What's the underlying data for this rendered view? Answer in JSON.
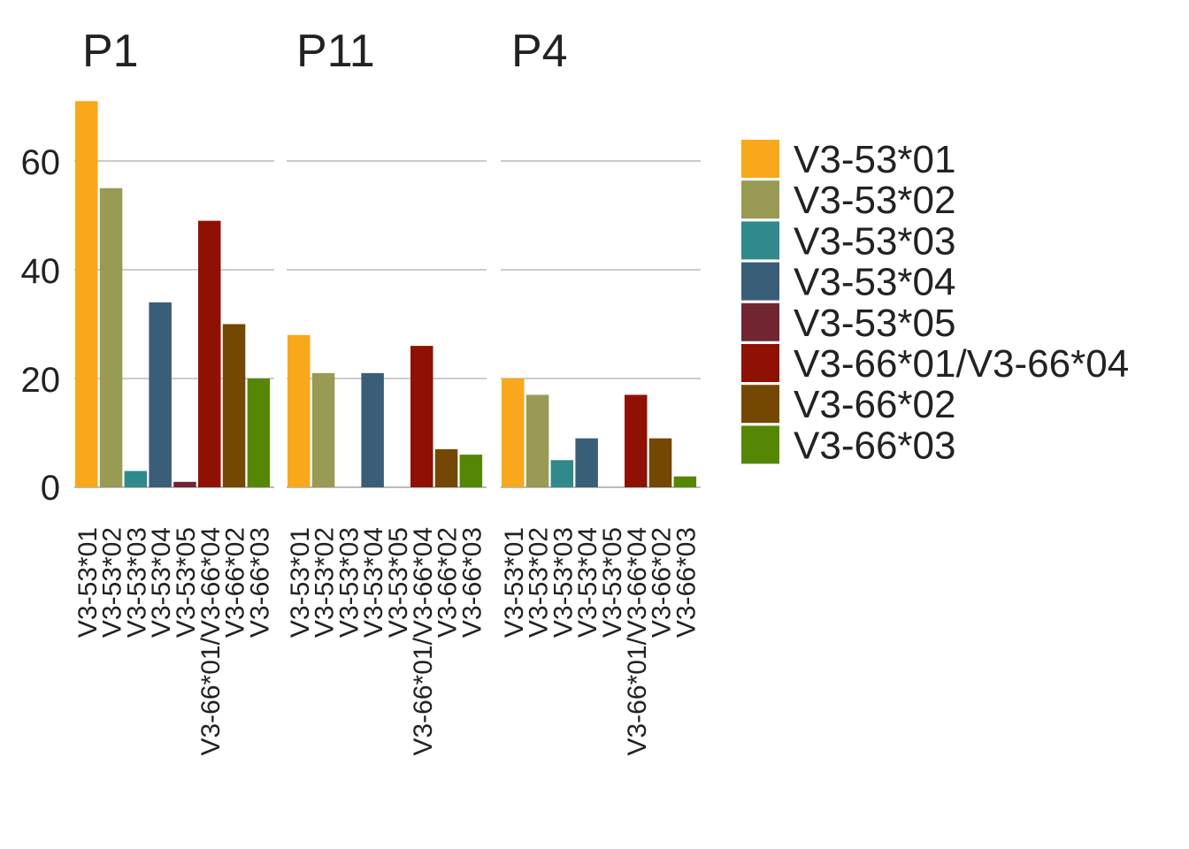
{
  "chart_data": {
    "type": "bar",
    "title": "",
    "xlabel": "",
    "ylabel": "",
    "ylim": [
      0,
      71
    ],
    "yticks": [
      0,
      20,
      40,
      60
    ],
    "grid": true,
    "legend_position": "right",
    "categories": [
      "V3-53*01",
      "V3-53*02",
      "V3-53*03",
      "V3-53*04",
      "V3-53*05",
      "V3-66*01/V3-66*04",
      "V3-66*02",
      "V3-66*03"
    ],
    "colors": [
      "#f9a81b",
      "#999a54",
      "#308a8b",
      "#3a5d78",
      "#712531",
      "#8f1103",
      "#744703",
      "#558705"
    ],
    "panels": [
      {
        "name": "P1",
        "values": [
          71,
          55,
          3,
          34,
          1,
          49,
          30,
          20
        ]
      },
      {
        "name": "P11",
        "values": [
          28,
          21,
          0,
          21,
          0,
          26,
          7,
          6
        ]
      },
      {
        "name": "P4",
        "values": [
          20,
          17,
          5,
          9,
          0,
          17,
          9,
          2
        ]
      }
    ]
  }
}
